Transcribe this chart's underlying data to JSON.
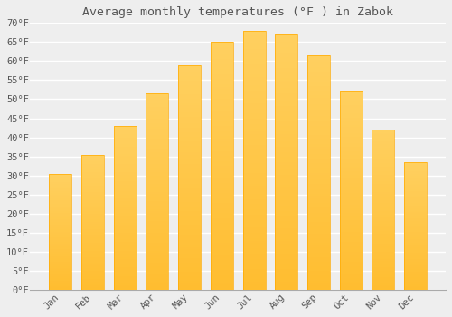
{
  "title": "Average monthly temperatures (°F ) in Zabok",
  "months": [
    "Jan",
    "Feb",
    "Mar",
    "Apr",
    "May",
    "Jun",
    "Jul",
    "Aug",
    "Sep",
    "Oct",
    "Nov",
    "Dec"
  ],
  "values": [
    30.5,
    35.5,
    43,
    51.5,
    59,
    65,
    68,
    67,
    61.5,
    52,
    42,
    33.5
  ],
  "bar_color_main": "#FFAA00",
  "bar_color_light": "#FFD060",
  "background_color": "#EEEEEE",
  "plot_bg_color": "#EEEEEE",
  "grid_color": "#FFFFFF",
  "text_color": "#555555",
  "ylim": [
    0,
    70
  ],
  "title_fontsize": 9.5,
  "tick_fontsize": 7.5,
  "bar_width": 0.7
}
